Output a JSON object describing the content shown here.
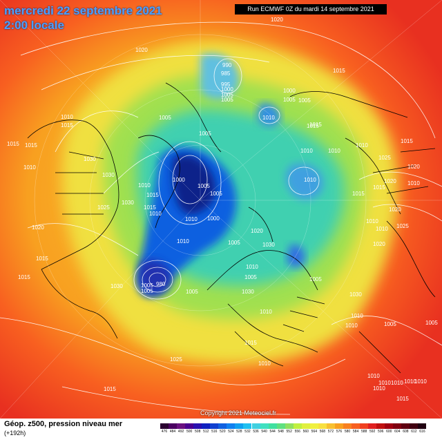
{
  "header": {
    "date": "mercredi 22 septembre 2021",
    "time": "2:00 locale",
    "run": "Run ECMWF 0Z du mardi 14 septembre 2021"
  },
  "copyright": "Copyright 2021 Meteociel.fr",
  "legend": {
    "title": "Géop. z500, pression niveau mer",
    "subtitle": "(+192h)",
    "scale": [
      "476",
      "484",
      "492",
      "500",
      "508",
      "512",
      "516",
      "520",
      "524",
      "528",
      "532",
      "536",
      "540",
      "544",
      "548",
      "552",
      "556",
      "560",
      "564",
      "568",
      "572",
      "576",
      "580",
      "584",
      "588",
      "592",
      "596",
      "600",
      "604",
      "608",
      "612",
      "616"
    ],
    "scale_colors": [
      "#2a0030",
      "#4a0060",
      "#6a1080",
      "#4a0090",
      "#2a10b0",
      "#1020c0",
      "#1040d0",
      "#1060e0",
      "#1080f0",
      "#10a0f0",
      "#20c0f0",
      "#40d0e0",
      "#40e0c0",
      "#40e0a0",
      "#60e080",
      "#90e060",
      "#c0f040",
      "#e0f040",
      "#f0f040",
      "#f8e040",
      "#f8c030",
      "#f8a020",
      "#f88020",
      "#f86020",
      "#f04020",
      "#e02020",
      "#c01010",
      "#a00010",
      "#800010",
      "#600010",
      "#400010",
      "#200010"
    ]
  },
  "pressure_labels": [
    "1020",
    "1020",
    "1015",
    "1010",
    "1005",
    "1015",
    "1015",
    "1030",
    "1010",
    "1030",
    "1025",
    "1030",
    "1020",
    "1015",
    "1015",
    "1030",
    "990",
    "985",
    "995",
    "1000",
    "1005",
    "1010",
    "1005",
    "1000",
    "1005",
    "1015",
    "1010",
    "1010",
    "1010",
    "1015",
    "1025",
    "1020",
    "1010",
    "1010",
    "1015",
    "1020",
    "1015",
    "1010",
    "1005",
    "1000",
    "1005",
    "1010",
    "1000",
    "1005",
    "1015",
    "1015",
    "1020",
    "1010",
    "1010",
    "1030",
    "1020",
    "1025",
    "1005",
    "1005",
    "1005",
    "1030",
    "1005",
    "1010",
    "1020",
    "1010",
    "980",
    "1005",
    "1030",
    "1010",
    "1005",
    "1015",
    "1010",
    "1010",
    "1010",
    "1005",
    "1025",
    "1015",
    "1010",
    "1010",
    "1015",
    "1010",
    "1010",
    "1010",
    "1010",
    "1010",
    "1015",
    "1015",
    "1005",
    "1005"
  ]
}
